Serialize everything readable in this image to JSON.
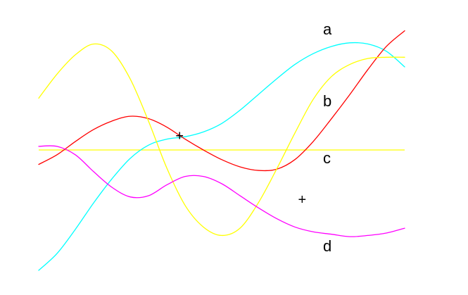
{
  "chart_data": {
    "type": "line",
    "title": "",
    "xlabel": "",
    "ylabel": "",
    "grid": false,
    "axes_visible": false,
    "xlim": [
      0,
      10
    ],
    "ylim": [
      -1,
      1
    ],
    "x": [
      0,
      0.5,
      1,
      1.5,
      2,
      2.5,
      3,
      3.5,
      4,
      4.5,
      5,
      5.5,
      6,
      6.5,
      7,
      7.5,
      8,
      8.5,
      9,
      9.5,
      10
    ],
    "series": [
      {
        "key": "cyan",
        "color": "#00FFFF",
        "values": [
          -1.0,
          -0.86,
          -0.66,
          -0.44,
          -0.24,
          -0.07,
          0.04,
          0.09,
          0.11,
          0.15,
          0.22,
          0.33,
          0.46,
          0.59,
          0.71,
          0.8,
          0.86,
          0.89,
          0.88,
          0.82,
          0.69
        ]
      },
      {
        "key": "red",
        "color": "#FF0000",
        "values": [
          -0.12,
          -0.04,
          0.07,
          0.17,
          0.24,
          0.28,
          0.26,
          0.19,
          0.09,
          0.0,
          -0.08,
          -0.14,
          -0.17,
          -0.16,
          -0.08,
          0.07,
          0.26,
          0.46,
          0.67,
          0.86,
          0.99
        ]
      },
      {
        "key": "yellow",
        "color": "#FFFF00",
        "values": [
          0.43,
          0.63,
          0.79,
          0.88,
          0.82,
          0.59,
          0.24,
          -0.15,
          -0.46,
          -0.64,
          -0.71,
          -0.65,
          -0.44,
          -0.16,
          0.14,
          0.42,
          0.61,
          0.71,
          0.76,
          0.77,
          0.77
        ]
      },
      {
        "key": "magenta",
        "color": "#FF00FF",
        "values": [
          0.03,
          0.03,
          -0.04,
          -0.18,
          -0.31,
          -0.39,
          -0.38,
          -0.29,
          -0.22,
          -0.22,
          -0.28,
          -0.38,
          -0.48,
          -0.57,
          -0.64,
          -0.68,
          -0.7,
          -0.72,
          -0.71,
          -0.69,
          -0.65
        ]
      }
    ],
    "reference_line": {
      "y": 0.0,
      "color": "#FFFF00"
    },
    "labels": [
      "a",
      "b",
      "c",
      "d"
    ],
    "markers": [
      {
        "text": "+",
        "x": 3.85,
        "y": 0.12
      },
      {
        "text": "+",
        "x": 7.2,
        "y": -0.41
      }
    ]
  }
}
